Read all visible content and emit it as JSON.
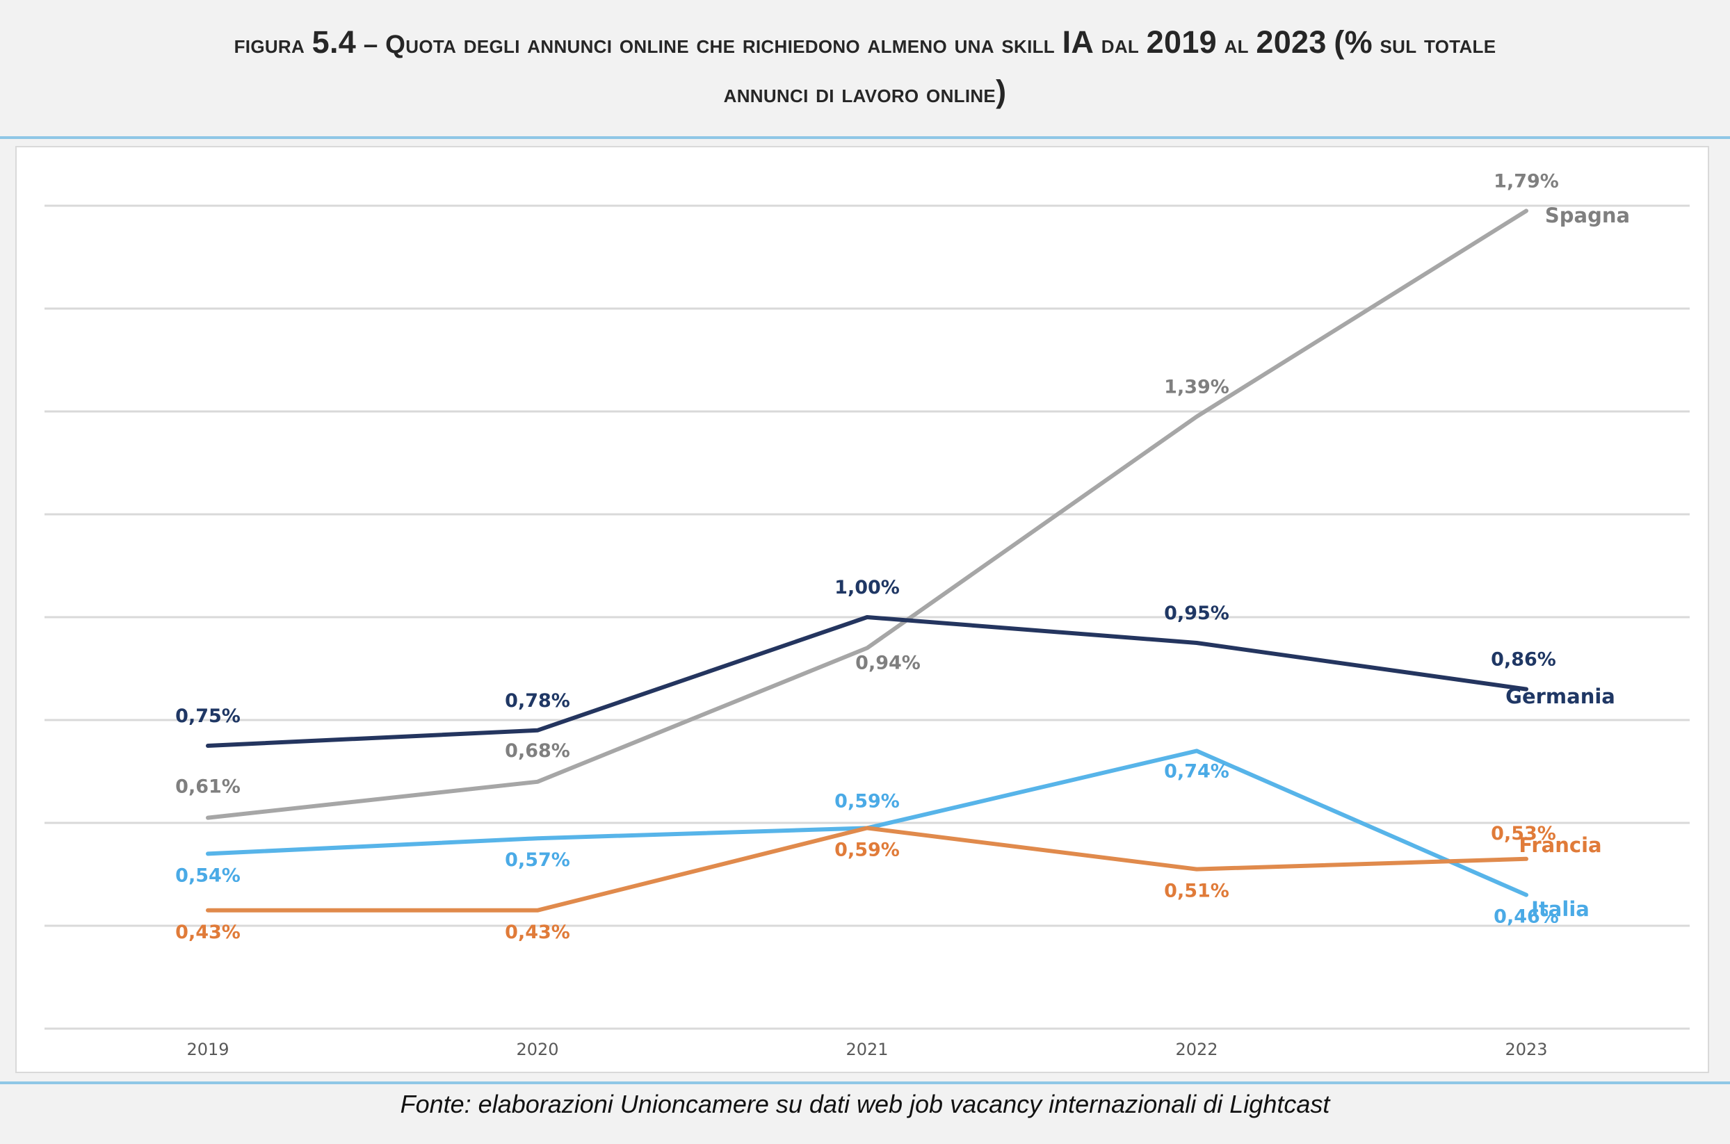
{
  "header": {
    "title_line1": "figura 5.4 – Quota degli annunci online che richiedono almeno una skill IA dal 2019 al 2023 (% sul totale",
    "title_line2": "annunci di lavoro online)"
  },
  "source_note": "Fonte: elaborazioni Unioncamere su dati web job vacancy internazionali di Lightcast",
  "chart_data": {
    "type": "line",
    "title": "figura 5.4 – Quota degli annunci online che richiedono almeno una skill IA dal 2019 al 2023 (% sul totale annunci di lavoro online)",
    "categories": [
      "2019",
      "2020",
      "2021",
      "2022",
      "2023"
    ],
    "series": [
      {
        "name": "Spagna",
        "color": "#a6a6a6",
        "label_color": "#7f7f7f",
        "values": [
          0.61,
          0.68,
          0.94,
          1.39,
          1.79
        ],
        "labels": [
          "0,61%",
          "0,68%",
          "0,94%",
          "1,39%",
          "1,79%"
        ]
      },
      {
        "name": "Germania",
        "color": "#24355f",
        "label_color": "#1f3764",
        "values": [
          0.75,
          0.78,
          1.0,
          0.95,
          0.86
        ],
        "labels": [
          "0,75%",
          "0,78%",
          "1,00%",
          "0,95%",
          "0,86%"
        ]
      },
      {
        "name": "Francia",
        "color": "#e08a4c",
        "label_color": "#e07b39",
        "values": [
          0.43,
          0.43,
          0.59,
          0.51,
          0.53
        ],
        "labels": [
          "0,43%",
          "0,43%",
          "0,59%",
          "0,51%",
          "0,53%"
        ]
      },
      {
        "name": "Italia",
        "color": "#57b4e9",
        "label_color": "#4aaae6",
        "values": [
          0.54,
          0.57,
          0.59,
          0.74,
          0.46
        ],
        "labels": [
          "0,54%",
          "0,57%",
          "0,59%",
          "0,74%",
          "0,46%"
        ]
      }
    ],
    "ylim": [
      0.2,
      1.8
    ],
    "yticks": [
      0.2,
      0.4,
      0.6,
      0.8,
      1.0,
      1.2,
      1.4,
      1.6,
      1.8
    ],
    "ytick_labels_shown": false,
    "grid": true,
    "legend": "series names at line ends (right)",
    "xlabel": "",
    "ylabel": ""
  }
}
